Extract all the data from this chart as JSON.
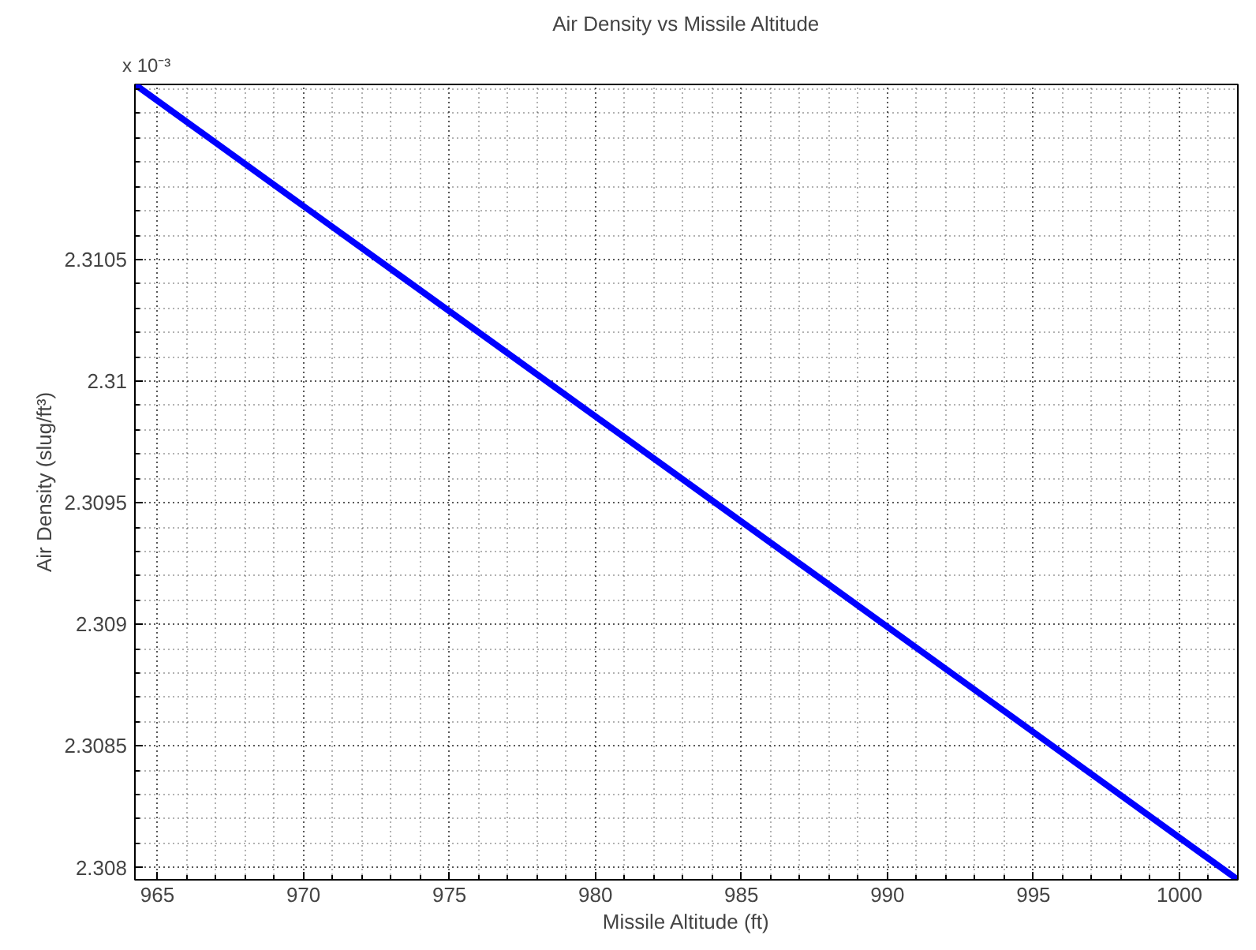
{
  "chart_data": {
    "type": "line",
    "title": "Air Density vs Missile Altitude",
    "xlabel": "Missile Altitude (ft)",
    "ylabel": "Air Density (slug/ft³)",
    "x": [
      964.23,
      970,
      980,
      990,
      1002.0
    ],
    "series": [
      {
        "color": "#0000ff",
        "values": [
          2.31122,
          2.31072,
          2.309855,
          2.30899,
          2.30795
        ]
      }
    ],
    "xlim": [
      964.23,
      1002.0
    ],
    "ylim": [
      2.30795,
      2.31122
    ],
    "xticks": [
      965,
      970,
      975,
      980,
      985,
      990,
      995,
      1000
    ],
    "yticks": [
      2.308,
      2.3085,
      2.309,
      2.3095,
      2.31,
      2.3105
    ],
    "grid": true,
    "line_style": "solid",
    "marker": "none",
    "annotations": [
      "x 10⁻³"
    ]
  }
}
